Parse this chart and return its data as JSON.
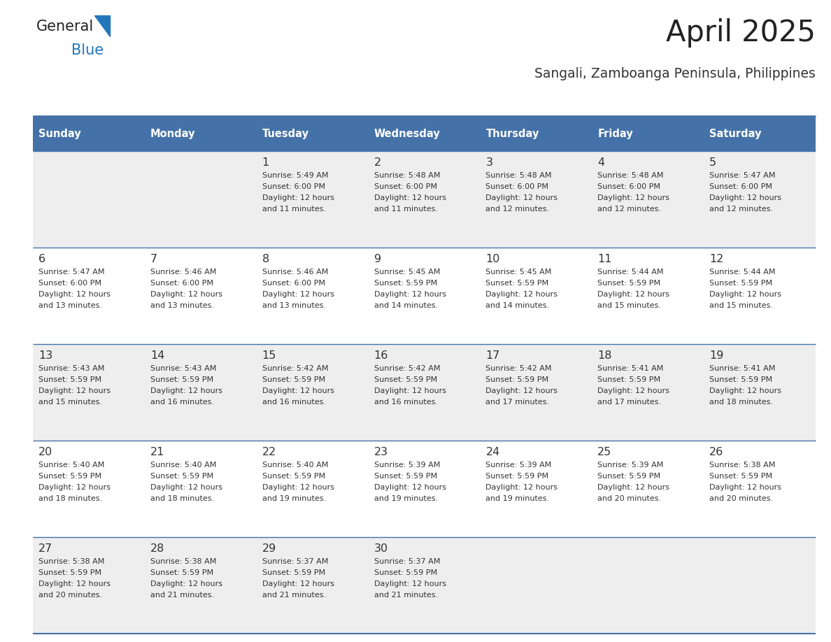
{
  "title": "April 2025",
  "subtitle": "Sangali, Zamboanga Peninsula, Philippines",
  "header_bg_color": "#4472a8",
  "header_text_color": "#ffffff",
  "day_names": [
    "Sunday",
    "Monday",
    "Tuesday",
    "Wednesday",
    "Thursday",
    "Friday",
    "Saturday"
  ],
  "row_bg_colors": [
    "#eeeeee",
    "#ffffff"
  ],
  "cell_text_color": "#333333",
  "border_color": "#4472a8",
  "logo_color": "#2277bb",
  "logo_color_dark": "#222222",
  "title_color": "#222222",
  "subtitle_color": "#333333",
  "calendar": [
    [
      {
        "day": "",
        "lines": []
      },
      {
        "day": "",
        "lines": []
      },
      {
        "day": "1",
        "lines": [
          "Sunrise: 5:49 AM",
          "Sunset: 6:00 PM",
          "Daylight: 12 hours",
          "and 11 minutes."
        ]
      },
      {
        "day": "2",
        "lines": [
          "Sunrise: 5:48 AM",
          "Sunset: 6:00 PM",
          "Daylight: 12 hours",
          "and 11 minutes."
        ]
      },
      {
        "day": "3",
        "lines": [
          "Sunrise: 5:48 AM",
          "Sunset: 6:00 PM",
          "Daylight: 12 hours",
          "and 12 minutes."
        ]
      },
      {
        "day": "4",
        "lines": [
          "Sunrise: 5:48 AM",
          "Sunset: 6:00 PM",
          "Daylight: 12 hours",
          "and 12 minutes."
        ]
      },
      {
        "day": "5",
        "lines": [
          "Sunrise: 5:47 AM",
          "Sunset: 6:00 PM",
          "Daylight: 12 hours",
          "and 12 minutes."
        ]
      }
    ],
    [
      {
        "day": "6",
        "lines": [
          "Sunrise: 5:47 AM",
          "Sunset: 6:00 PM",
          "Daylight: 12 hours",
          "and 13 minutes."
        ]
      },
      {
        "day": "7",
        "lines": [
          "Sunrise: 5:46 AM",
          "Sunset: 6:00 PM",
          "Daylight: 12 hours",
          "and 13 minutes."
        ]
      },
      {
        "day": "8",
        "lines": [
          "Sunrise: 5:46 AM",
          "Sunset: 6:00 PM",
          "Daylight: 12 hours",
          "and 13 minutes."
        ]
      },
      {
        "day": "9",
        "lines": [
          "Sunrise: 5:45 AM",
          "Sunset: 5:59 PM",
          "Daylight: 12 hours",
          "and 14 minutes."
        ]
      },
      {
        "day": "10",
        "lines": [
          "Sunrise: 5:45 AM",
          "Sunset: 5:59 PM",
          "Daylight: 12 hours",
          "and 14 minutes."
        ]
      },
      {
        "day": "11",
        "lines": [
          "Sunrise: 5:44 AM",
          "Sunset: 5:59 PM",
          "Daylight: 12 hours",
          "and 15 minutes."
        ]
      },
      {
        "day": "12",
        "lines": [
          "Sunrise: 5:44 AM",
          "Sunset: 5:59 PM",
          "Daylight: 12 hours",
          "and 15 minutes."
        ]
      }
    ],
    [
      {
        "day": "13",
        "lines": [
          "Sunrise: 5:43 AM",
          "Sunset: 5:59 PM",
          "Daylight: 12 hours",
          "and 15 minutes."
        ]
      },
      {
        "day": "14",
        "lines": [
          "Sunrise: 5:43 AM",
          "Sunset: 5:59 PM",
          "Daylight: 12 hours",
          "and 16 minutes."
        ]
      },
      {
        "day": "15",
        "lines": [
          "Sunrise: 5:42 AM",
          "Sunset: 5:59 PM",
          "Daylight: 12 hours",
          "and 16 minutes."
        ]
      },
      {
        "day": "16",
        "lines": [
          "Sunrise: 5:42 AM",
          "Sunset: 5:59 PM",
          "Daylight: 12 hours",
          "and 16 minutes."
        ]
      },
      {
        "day": "17",
        "lines": [
          "Sunrise: 5:42 AM",
          "Sunset: 5:59 PM",
          "Daylight: 12 hours",
          "and 17 minutes."
        ]
      },
      {
        "day": "18",
        "lines": [
          "Sunrise: 5:41 AM",
          "Sunset: 5:59 PM",
          "Daylight: 12 hours",
          "and 17 minutes."
        ]
      },
      {
        "day": "19",
        "lines": [
          "Sunrise: 5:41 AM",
          "Sunset: 5:59 PM",
          "Daylight: 12 hours",
          "and 18 minutes."
        ]
      }
    ],
    [
      {
        "day": "20",
        "lines": [
          "Sunrise: 5:40 AM",
          "Sunset: 5:59 PM",
          "Daylight: 12 hours",
          "and 18 minutes."
        ]
      },
      {
        "day": "21",
        "lines": [
          "Sunrise: 5:40 AM",
          "Sunset: 5:59 PM",
          "Daylight: 12 hours",
          "and 18 minutes."
        ]
      },
      {
        "day": "22",
        "lines": [
          "Sunrise: 5:40 AM",
          "Sunset: 5:59 PM",
          "Daylight: 12 hours",
          "and 19 minutes."
        ]
      },
      {
        "day": "23",
        "lines": [
          "Sunrise: 5:39 AM",
          "Sunset: 5:59 PM",
          "Daylight: 12 hours",
          "and 19 minutes."
        ]
      },
      {
        "day": "24",
        "lines": [
          "Sunrise: 5:39 AM",
          "Sunset: 5:59 PM",
          "Daylight: 12 hours",
          "and 19 minutes."
        ]
      },
      {
        "day": "25",
        "lines": [
          "Sunrise: 5:39 AM",
          "Sunset: 5:59 PM",
          "Daylight: 12 hours",
          "and 20 minutes."
        ]
      },
      {
        "day": "26",
        "lines": [
          "Sunrise: 5:38 AM",
          "Sunset: 5:59 PM",
          "Daylight: 12 hours",
          "and 20 minutes."
        ]
      }
    ],
    [
      {
        "day": "27",
        "lines": [
          "Sunrise: 5:38 AM",
          "Sunset: 5:59 PM",
          "Daylight: 12 hours",
          "and 20 minutes."
        ]
      },
      {
        "day": "28",
        "lines": [
          "Sunrise: 5:38 AM",
          "Sunset: 5:59 PM",
          "Daylight: 12 hours",
          "and 21 minutes."
        ]
      },
      {
        "day": "29",
        "lines": [
          "Sunrise: 5:37 AM",
          "Sunset: 5:59 PM",
          "Daylight: 12 hours",
          "and 21 minutes."
        ]
      },
      {
        "day": "30",
        "lines": [
          "Sunrise: 5:37 AM",
          "Sunset: 5:59 PM",
          "Daylight: 12 hours",
          "and 21 minutes."
        ]
      },
      {
        "day": "",
        "lines": []
      },
      {
        "day": "",
        "lines": []
      },
      {
        "day": "",
        "lines": []
      }
    ]
  ],
  "figsize": [
    11.88,
    9.18
  ],
  "dpi": 100
}
